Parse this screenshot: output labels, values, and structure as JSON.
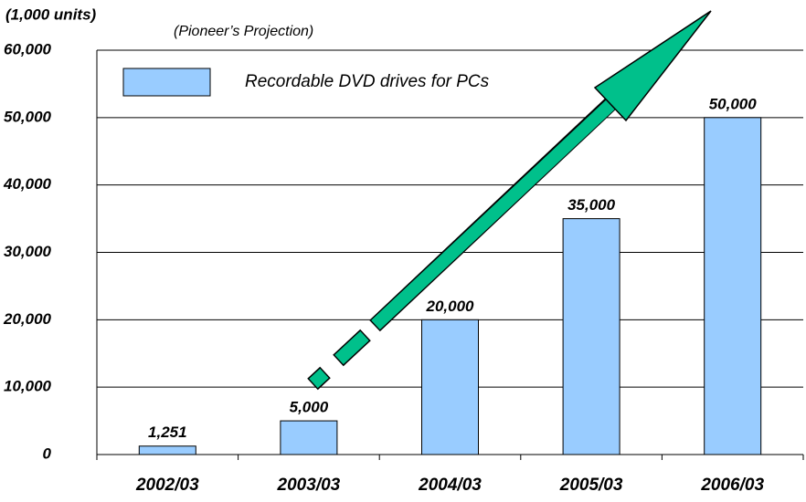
{
  "chart_data": {
    "type": "bar",
    "unit_label": "(1,000 units)",
    "subtitle": "(Pioneer’s Projection)",
    "categories": [
      "2002/03",
      "2003/03",
      "2004/03",
      "2005/03",
      "2006/03"
    ],
    "series": [
      {
        "name": "Recordable DVD drives for PCs",
        "color": "#99ccff",
        "values": [
          1251,
          5000,
          20000,
          35000,
          50000
        ],
        "value_labels": [
          "1,251",
          "5,000",
          "20,000",
          "35,000",
          "50,000"
        ]
      }
    ],
    "ylim": [
      0,
      60000
    ],
    "yticks": [
      {
        "value": 0,
        "label": "0"
      },
      {
        "value": 10000,
        "label": "10,000"
      },
      {
        "value": 20000,
        "label": "20,000"
      },
      {
        "value": 30000,
        "label": "30,000"
      },
      {
        "value": 40000,
        "label": "40,000"
      },
      {
        "value": 50000,
        "label": "50,000"
      },
      {
        "value": 60000,
        "label": "60,000"
      }
    ],
    "grid": true
  }
}
